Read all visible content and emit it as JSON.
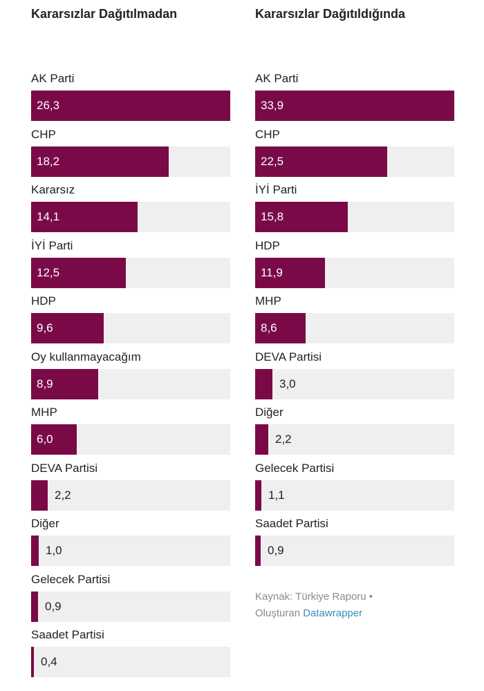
{
  "colors": {
    "bar": "#7a0a47",
    "track": "#efefef",
    "link": "#3a8bb8"
  },
  "chart_data": [
    {
      "type": "bar",
      "orientation": "horizontal",
      "title": "Kararsızlar Dağıtılmadan",
      "scale_max": 26.3,
      "categories": [
        "AK Parti",
        "CHP",
        "Kararsız",
        "İYİ Parti",
        "HDP",
        "Oy kullanmayacağım",
        "MHP",
        "DEVA Partisi",
        "Diğer",
        "Gelecek Partisi",
        "Saadet Partisi"
      ],
      "values": [
        26.3,
        18.2,
        14.1,
        12.5,
        9.6,
        8.9,
        6.0,
        2.2,
        1.0,
        0.9,
        0.4
      ],
      "value_labels": [
        "26,3",
        "18,2",
        "14,1",
        "12,5",
        "9,6",
        "8,9",
        "6,0",
        "2,2",
        "1,0",
        "0,9",
        "0,4"
      ]
    },
    {
      "type": "bar",
      "orientation": "horizontal",
      "title": "Kararsızlar Dağıtıldığında",
      "scale_max": 33.9,
      "categories": [
        "AK Parti",
        "CHP",
        "İYİ Parti",
        "HDP",
        "MHP",
        "DEVA Partisi",
        "Diğer",
        "Gelecek Partisi",
        "Saadet Partisi"
      ],
      "values": [
        33.9,
        22.5,
        15.8,
        11.9,
        8.6,
        3.0,
        2.2,
        1.1,
        0.9
      ],
      "value_labels": [
        "33,9",
        "22,5",
        "15,8",
        "11,9",
        "8,6",
        "3,0",
        "2,2",
        "1,1",
        "0,9"
      ]
    }
  ],
  "footer": {
    "source": "Kaynak: Türkiye Raporu •",
    "created_prefix": "Oluşturan",
    "created_link": "Datawrapper"
  }
}
